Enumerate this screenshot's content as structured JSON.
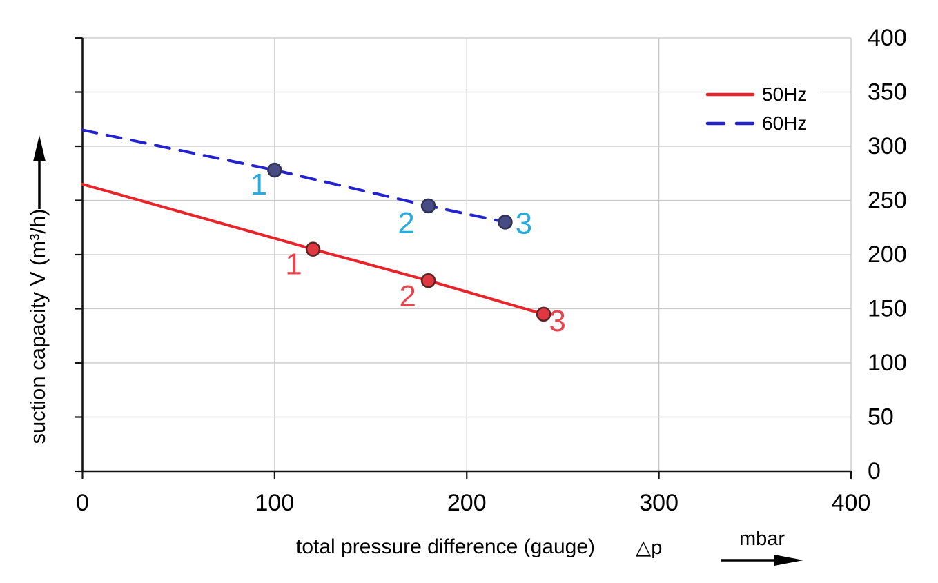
{
  "chart_data": {
    "type": "line",
    "title": "",
    "xlabel": "total pressure difference (gauge)",
    "xlabel_symbol": "△p",
    "x_unit": "mbar",
    "ylabel": "suction capacity V (m³/h)",
    "xlim": [
      0,
      400
    ],
    "ylim": [
      0,
      400
    ],
    "x_ticks": [
      0,
      100,
      200,
      300,
      400
    ],
    "y_ticks": [
      0,
      50,
      100,
      150,
      200,
      250,
      300,
      350,
      400
    ],
    "y_tick_side": "right",
    "grid": true,
    "legend_position": "top-right",
    "series": [
      {
        "name": "50Hz",
        "line_style": "solid",
        "line_color": "#E8232A",
        "marker_fill": "#E03840",
        "marker_stroke": "#5A2424",
        "label_color": "#E8464E",
        "points": [
          {
            "x": 0,
            "y": 265
          },
          {
            "x": 120,
            "y": 205,
            "label": "1",
            "label_dx": -28,
            "label_dy": 22
          },
          {
            "x": 180,
            "y": 176,
            "label": "2",
            "label_dx": -30,
            "label_dy": 23
          },
          {
            "x": 240,
            "y": 145,
            "label": "3",
            "label_dx": 20,
            "label_dy": 10
          }
        ]
      },
      {
        "name": "60Hz",
        "line_style": "dashed",
        "line_color": "#2222CE",
        "marker_fill": "#474C85",
        "marker_stroke": "#2E3254",
        "label_color": "#29ABE2",
        "points": [
          {
            "x": 0,
            "y": 315
          },
          {
            "x": 100,
            "y": 278,
            "label": "1",
            "label_dx": -23,
            "label_dy": 21
          },
          {
            "x": 180,
            "y": 245,
            "label": "2",
            "label_dx": -32,
            "label_dy": 25
          },
          {
            "x": 220,
            "y": 230,
            "label": "3",
            "label_dx": 27,
            "label_dy": 2
          }
        ]
      }
    ]
  },
  "colors": {
    "background": "#FFFFFF",
    "grid": "#C8C8C8",
    "axis": "#141414",
    "tick_text": "#000000"
  }
}
